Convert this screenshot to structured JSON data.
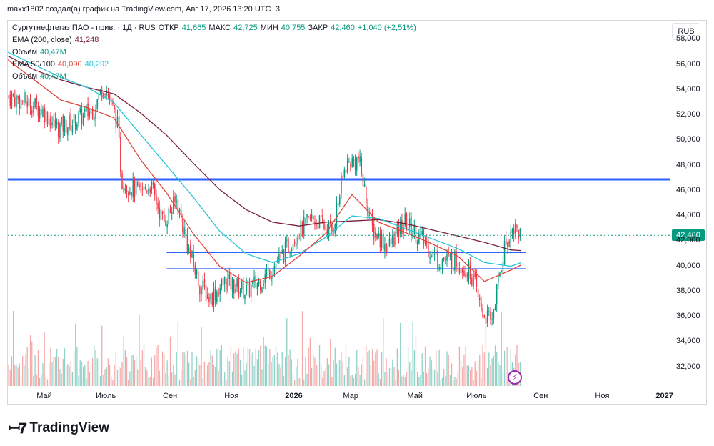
{
  "header": "maxx1802 создал(а) график на TradingView.com, Авг 17, 2026 13:20 UTC+3",
  "legend": {
    "main": {
      "name": "Сургутнефтегаз ПАО - прив. · 1Д · RUS",
      "open_label": "ОТКР",
      "open": "41,665",
      "high_label": "МАКС",
      "high": "42,725",
      "low_label": "МИН",
      "low": "40,755",
      "close_label": "ЗАКР",
      "close": "42,460",
      "change": "+1,040 (+2,51%)"
    },
    "ema200": {
      "label": "EMA (200, close)",
      "value": "41,248"
    },
    "volume1": {
      "label": "Объём",
      "value": "40,47M"
    },
    "ema50_100": {
      "label": "EMA 50/100",
      "value1": "40,090",
      "value2": "40,292"
    },
    "volume2": {
      "label": "Объём",
      "value": "40,47M"
    }
  },
  "currency": "RUB",
  "last_price": "42,460",
  "logo_text": "TradingView",
  "icons": {
    "flash": "lightning-icon",
    "logo": "tradingview-logo-icon"
  },
  "colors": {
    "up": "#089981",
    "down": "#f23645",
    "hline": "#2962ff",
    "ema200": "#7b1e3b",
    "ema50": "#e0453b",
    "ema100": "#26c6da",
    "vol_up": "#8fd3c8",
    "vol_down": "#f5a9a9"
  },
  "chart_data": {
    "type": "candlestick",
    "y_ticks": [
      "58,000",
      "56,000",
      "54,000",
      "52,000",
      "50,000",
      "48,000",
      "46,000",
      "44,000",
      "42,000",
      "40,000",
      "38,000",
      "36,000",
      "34,000",
      "32,000"
    ],
    "x_ticks": [
      {
        "label": "Май",
        "t": 0.055
      },
      {
        "label": "Июль",
        "t": 0.148
      },
      {
        "label": "Сен",
        "t": 0.245
      },
      {
        "label": "Ноя",
        "t": 0.338
      },
      {
        "label": "2026",
        "t": 0.432,
        "bold": true
      },
      {
        "label": "Мар",
        "t": 0.518
      },
      {
        "label": "Май",
        "t": 0.615
      },
      {
        "label": "Июль",
        "t": 0.708
      },
      {
        "label": "Сен",
        "t": 0.805
      },
      {
        "label": "Ноя",
        "t": 0.898
      },
      {
        "label": "2027",
        "t": 0.992,
        "bold": true
      }
    ],
    "ylim": [
      30500,
      59500
    ],
    "horizontal_levels": [
      {
        "price": 46900,
        "from": 0.0,
        "to": 1.0,
        "weight": "thick"
      },
      {
        "price": 41100,
        "from": 0.24,
        "to": 0.783,
        "weight": "thin"
      },
      {
        "price": 39800,
        "from": 0.24,
        "to": 0.783,
        "weight": "thin"
      }
    ],
    "price_path": [
      [
        0.0,
        53500
      ],
      [
        0.03,
        53000
      ],
      [
        0.05,
        52500
      ],
      [
        0.075,
        51000
      ],
      [
        0.1,
        51500
      ],
      [
        0.13,
        52500
      ],
      [
        0.145,
        54500
      ],
      [
        0.165,
        51500
      ],
      [
        0.172,
        46800
      ],
      [
        0.2,
        45800
      ],
      [
        0.215,
        46500
      ],
      [
        0.235,
        43500
      ],
      [
        0.255,
        45200
      ],
      [
        0.275,
        41000
      ],
      [
        0.29,
        38500
      ],
      [
        0.305,
        37500
      ],
      [
        0.33,
        38800
      ],
      [
        0.36,
        38000
      ],
      [
        0.385,
        39000
      ],
      [
        0.41,
        40500
      ],
      [
        0.435,
        42500
      ],
      [
        0.46,
        43800
      ],
      [
        0.49,
        42800
      ],
      [
        0.51,
        48000
      ],
      [
        0.53,
        48500
      ],
      [
        0.55,
        43000
      ],
      [
        0.575,
        41500
      ],
      [
        0.6,
        43500
      ],
      [
        0.625,
        42200
      ],
      [
        0.65,
        40500
      ],
      [
        0.675,
        40500
      ],
      [
        0.7,
        39500
      ],
      [
        0.715,
        36500
      ],
      [
        0.73,
        35500
      ],
      [
        0.75,
        41500
      ],
      [
        0.765,
        43200
      ],
      [
        0.775,
        42460
      ]
    ],
    "ema50_path": [
      [
        0.0,
        56400
      ],
      [
        0.04,
        54800
      ],
      [
        0.08,
        53200
      ],
      [
        0.12,
        52600
      ],
      [
        0.16,
        51800
      ],
      [
        0.2,
        48500
      ],
      [
        0.24,
        45800
      ],
      [
        0.28,
        42600
      ],
      [
        0.32,
        40000
      ],
      [
        0.36,
        38700
      ],
      [
        0.4,
        39200
      ],
      [
        0.44,
        40800
      ],
      [
        0.48,
        42600
      ],
      [
        0.52,
        45700
      ],
      [
        0.56,
        43500
      ],
      [
        0.6,
        42700
      ],
      [
        0.64,
        41800
      ],
      [
        0.68,
        40800
      ],
      [
        0.72,
        38800
      ],
      [
        0.76,
        39700
      ],
      [
        0.775,
        40090
      ]
    ],
    "ema100_path": [
      [
        0.0,
        57000
      ],
      [
        0.04,
        56000
      ],
      [
        0.08,
        55000
      ],
      [
        0.12,
        54200
      ],
      [
        0.16,
        53000
      ],
      [
        0.2,
        50500
      ],
      [
        0.24,
        48000
      ],
      [
        0.28,
        45500
      ],
      [
        0.32,
        42800
      ],
      [
        0.36,
        41000
      ],
      [
        0.4,
        40300
      ],
      [
        0.44,
        41000
      ],
      [
        0.48,
        42300
      ],
      [
        0.52,
        44000
      ],
      [
        0.56,
        43800
      ],
      [
        0.6,
        43000
      ],
      [
        0.64,
        42200
      ],
      [
        0.68,
        41400
      ],
      [
        0.72,
        40300
      ],
      [
        0.76,
        40000
      ],
      [
        0.775,
        40292
      ]
    ],
    "ema200_path": [
      [
        0.0,
        56700
      ],
      [
        0.04,
        55600
      ],
      [
        0.08,
        54800
      ],
      [
        0.12,
        54200
      ],
      [
        0.16,
        53700
      ],
      [
        0.2,
        52200
      ],
      [
        0.24,
        50400
      ],
      [
        0.28,
        48200
      ],
      [
        0.32,
        46100
      ],
      [
        0.36,
        44500
      ],
      [
        0.4,
        43500
      ],
      [
        0.44,
        43200
      ],
      [
        0.48,
        43500
      ],
      [
        0.52,
        43600
      ],
      [
        0.56,
        43700
      ],
      [
        0.6,
        43400
      ],
      [
        0.64,
        42900
      ],
      [
        0.68,
        42400
      ],
      [
        0.72,
        41900
      ],
      [
        0.76,
        41300
      ],
      [
        0.775,
        41248
      ]
    ],
    "candle_count": 330,
    "series": [
      {
        "name": "EMA (200, close)",
        "last": 41248
      },
      {
        "name": "EMA 50/100",
        "last": [
          40090,
          40292
        ]
      }
    ]
  }
}
